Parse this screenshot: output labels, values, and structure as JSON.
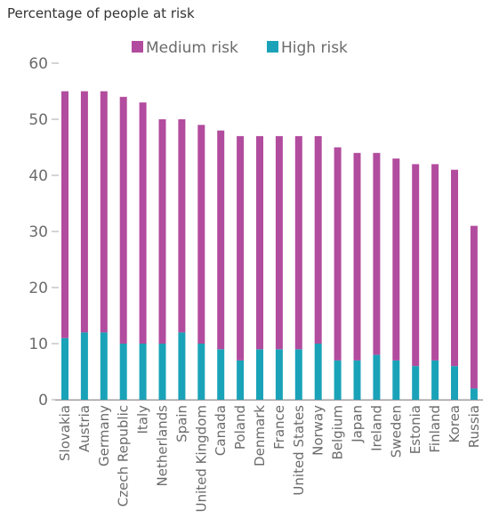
{
  "chart_data": {
    "type": "bar",
    "stacked": true,
    "title": "Percentage of people at risk",
    "xlabel": "",
    "ylabel": "",
    "ylim": [
      0,
      60
    ],
    "yticks": [
      0,
      10,
      20,
      30,
      40,
      50,
      60
    ],
    "grid": false,
    "legend": "top-center",
    "categories": [
      "Slovakia",
      "Austria",
      "Germany",
      "Czech Republic",
      "Italy",
      "Netherlands",
      "Spain",
      "United Kingdom",
      "Canada",
      "Poland",
      "Denmark",
      "France",
      "United States",
      "Norway",
      "Belgium",
      "Japan",
      "Ireland",
      "Sweden",
      "Estonia",
      "Finland",
      "Korea",
      "Russia"
    ],
    "series": [
      {
        "name": "High risk",
        "color": "#1aa3b8",
        "values": [
          11,
          12,
          12,
          10,
          10,
          10,
          12,
          10,
          9,
          7,
          9,
          9,
          9,
          10,
          7,
          7,
          8,
          7,
          6,
          7,
          6,
          2
        ]
      },
      {
        "name": "Medium risk",
        "color": "#b24c9e",
        "values": [
          44,
          43,
          43,
          44,
          43,
          40,
          38,
          39,
          39,
          40,
          38,
          38,
          38,
          37,
          38,
          37,
          36,
          36,
          36,
          35,
          35,
          29
        ]
      }
    ]
  }
}
